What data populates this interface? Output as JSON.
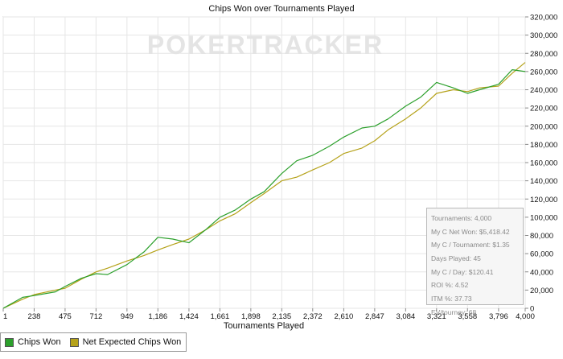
{
  "chart_data": {
    "type": "line",
    "title": "Chips Won over Tournaments Played",
    "xlabel": "Tournaments Played",
    "ylabel": "",
    "watermark": "POKERTRACKER",
    "x_ticks": [
      1,
      238,
      475,
      712,
      949,
      1186,
      1424,
      1661,
      1898,
      2135,
      2372,
      2610,
      2847,
      3084,
      3321,
      3558,
      3796,
      4000
    ],
    "x_tick_labels": [
      "1",
      "238",
      "475",
      "712",
      "949",
      "1,186",
      "1,424",
      "1,661",
      "1,898",
      "2,135",
      "2,372",
      "2,610",
      "2,847",
      "3,084",
      "3,321",
      "3,558",
      "3,796",
      "4,000"
    ],
    "xlim": [
      1,
      4000
    ],
    "y_ticks": [
      0,
      20000,
      40000,
      60000,
      80000,
      100000,
      120000,
      140000,
      160000,
      180000,
      200000,
      220000,
      240000,
      260000,
      280000,
      300000,
      320000
    ],
    "y_tick_labels": [
      "0",
      "20,000",
      "40,000",
      "60,000",
      "80,000",
      "100,000",
      "120,000",
      "140,000",
      "160,000",
      "180,000",
      "200,000",
      "220,000",
      "240,000",
      "260,000",
      "280,000",
      "300,000",
      "320,000"
    ],
    "ylim": [
      0,
      320000
    ],
    "grid": true,
    "legend_position": "bottom-left",
    "x": [
      1,
      150,
      238,
      400,
      475,
      600,
      712,
      800,
      949,
      1080,
      1186,
      1300,
      1424,
      1550,
      1661,
      1780,
      1898,
      2000,
      2135,
      2250,
      2372,
      2500,
      2610,
      2750,
      2847,
      2950,
      3084,
      3200,
      3321,
      3450,
      3558,
      3650,
      3796,
      3900,
      4000
    ],
    "series": [
      {
        "name": "Chips Won",
        "color": "#2ca02c",
        "values": [
          0,
          12000,
          14000,
          18000,
          24000,
          33000,
          38000,
          37000,
          48000,
          62000,
          78000,
          76000,
          72000,
          86000,
          100000,
          108000,
          120000,
          128000,
          148000,
          162000,
          168000,
          178000,
          188000,
          198000,
          200000,
          208000,
          222000,
          232000,
          248000,
          242000,
          236000,
          240000,
          246000,
          262000,
          260000
        ]
      },
      {
        "name": "Net Expected Chips Won",
        "color": "#b5a21a",
        "values": [
          0,
          10000,
          15000,
          20000,
          22000,
          32000,
          40000,
          44000,
          52000,
          58000,
          64000,
          70000,
          76000,
          86000,
          96000,
          104000,
          116000,
          126000,
          140000,
          144000,
          152000,
          160000,
          170000,
          176000,
          184000,
          196000,
          208000,
          220000,
          236000,
          240000,
          238000,
          242000,
          244000,
          258000,
          270000
        ]
      }
    ]
  },
  "stats": [
    "Tournaments: 4,000",
    "My C Net Won: $5,418.42",
    "My C / Tournament: $1.35",
    "Days Played: 45",
    "My C / Day: $120.41",
    "ROI %: 4.52",
    "ITM %: 37.73",
    "EV/tourney: 68"
  ]
}
